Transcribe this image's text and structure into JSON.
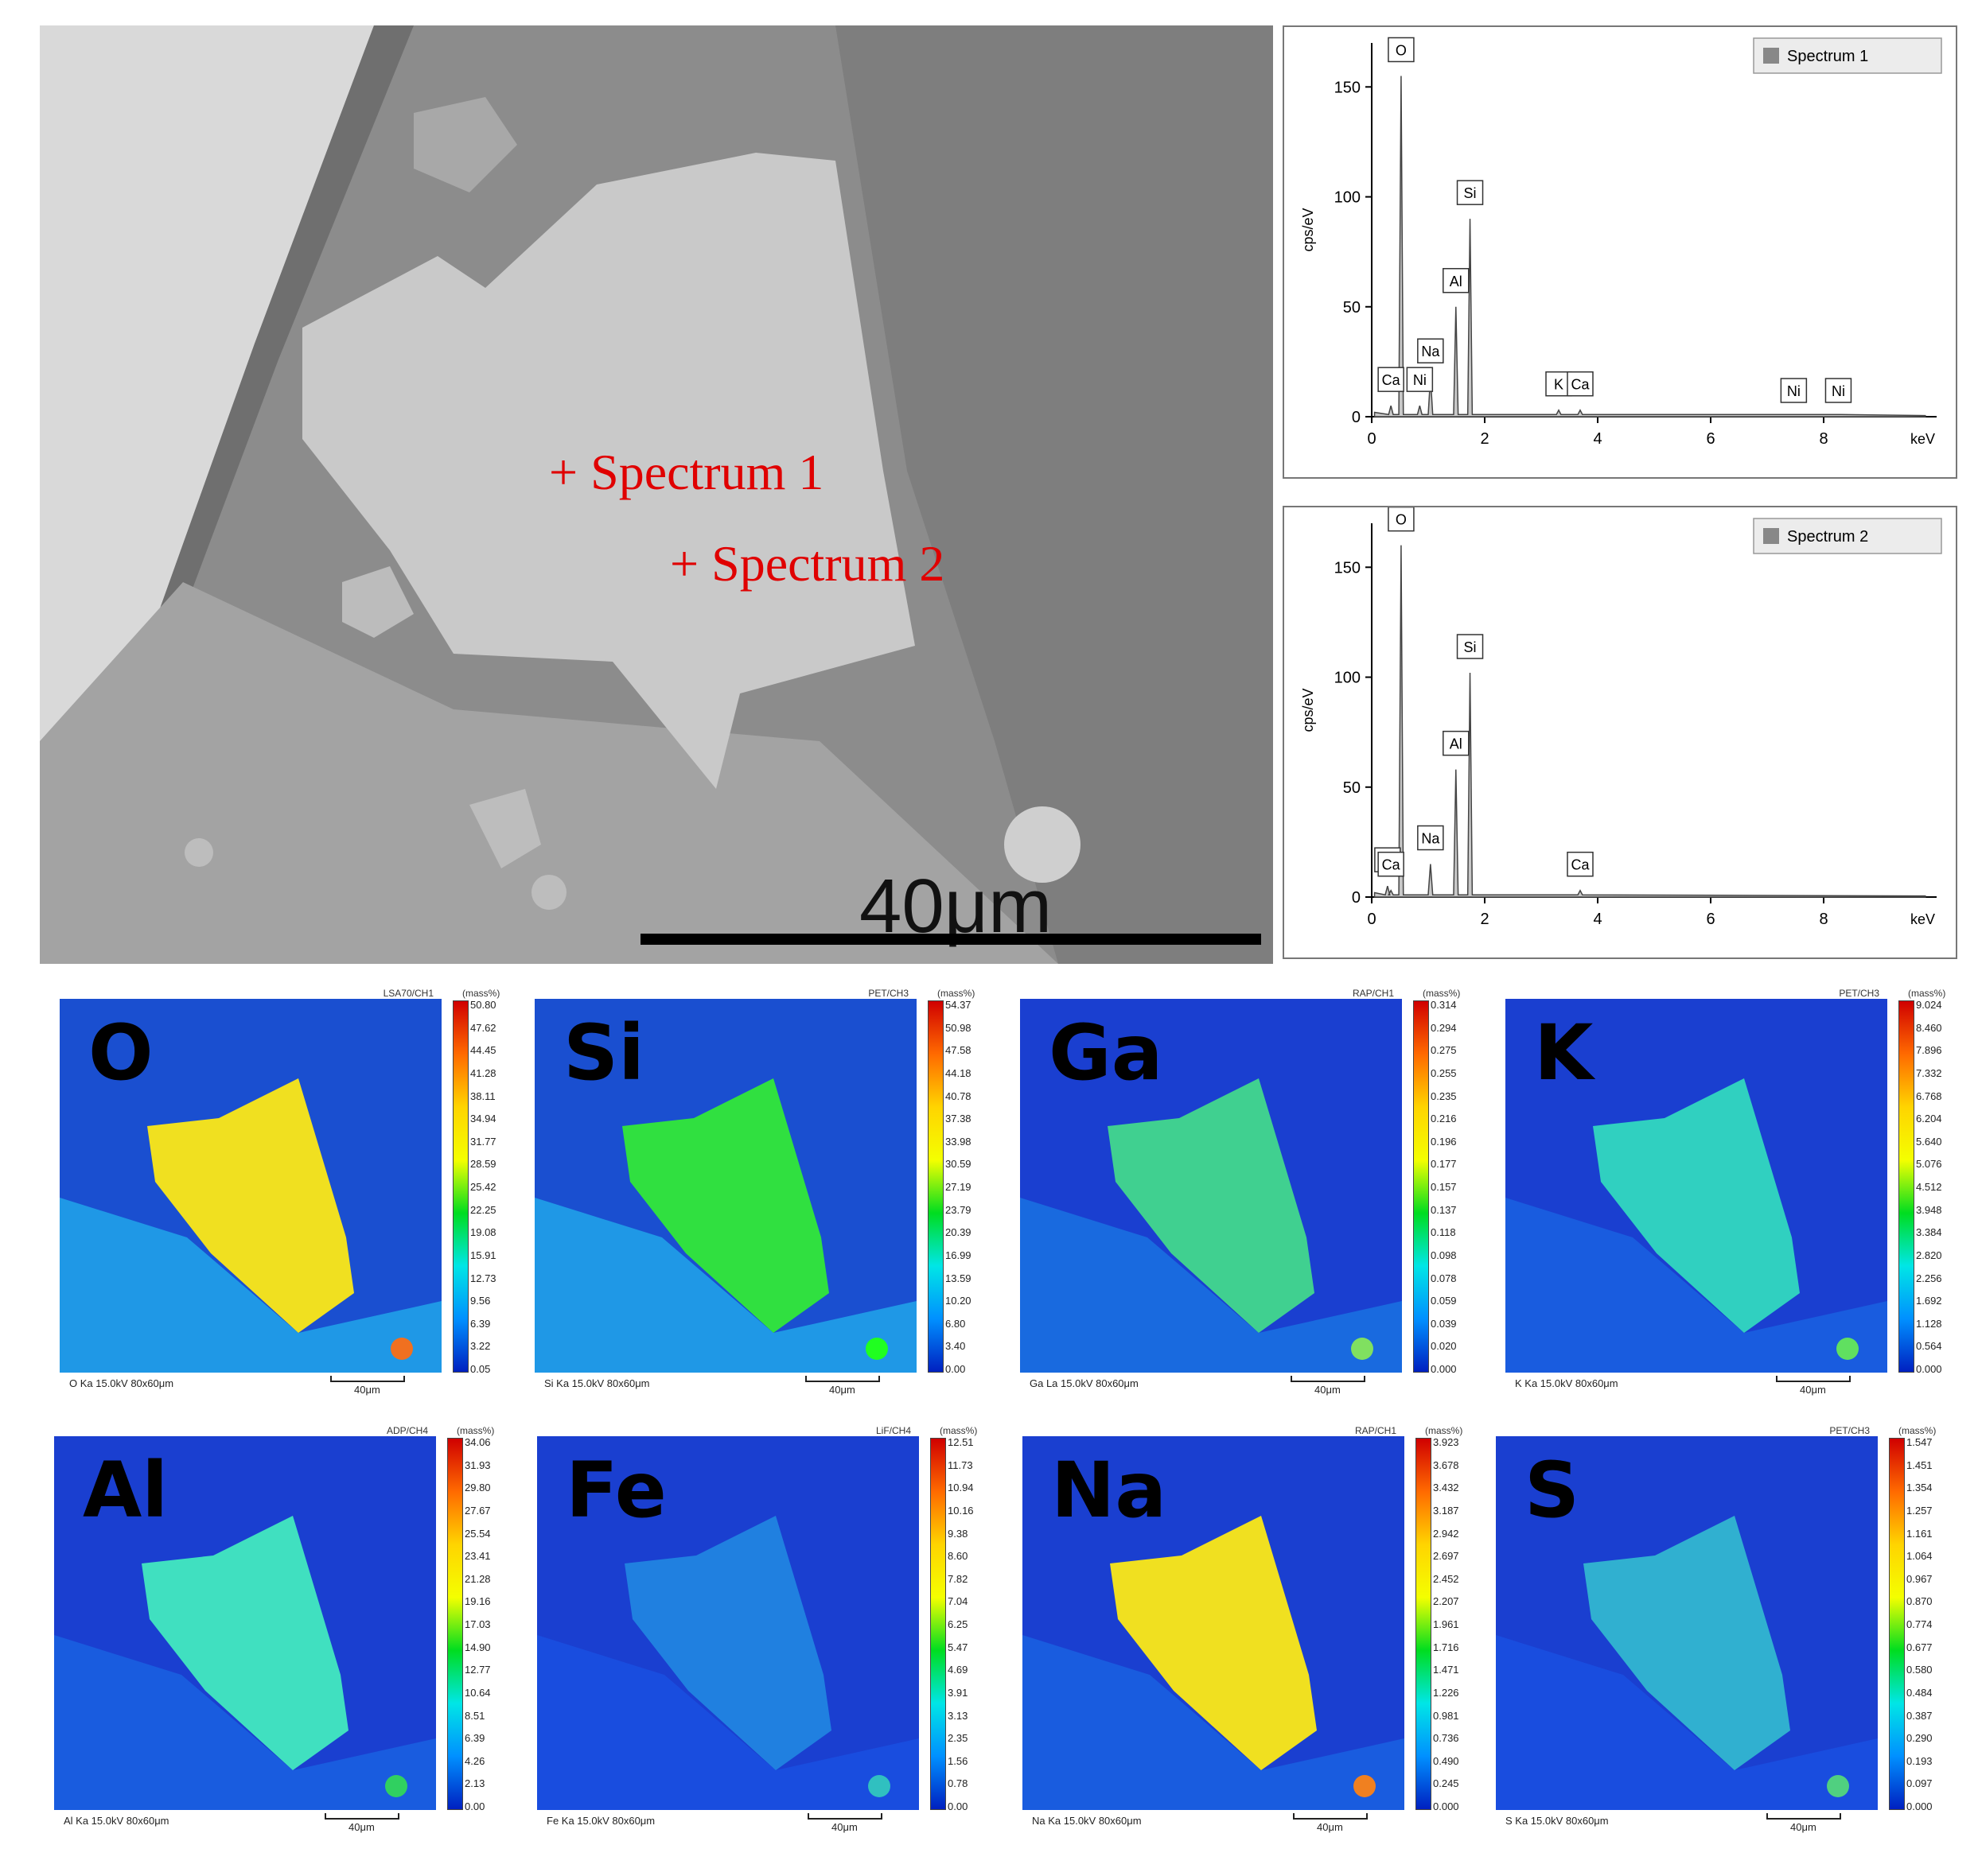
{
  "sem": {
    "spectrum1_label": "+ Spectrum 1",
    "spectrum2_label": "+ Spectrum 2",
    "scale_label": "40μm"
  },
  "spectra": [
    {
      "legend": "Spectrum 1",
      "ylabel": "cps/eV",
      "xlabel": "keV",
      "x_ticks": [
        "0",
        "2",
        "4",
        "6",
        "8"
      ],
      "y_ticks": [
        "0",
        "50",
        "100",
        "150"
      ],
      "peaks": [
        {
          "el": "O",
          "x": 0.52,
          "y": 155
        },
        {
          "el": "Si",
          "x": 1.74,
          "y": 90
        },
        {
          "el": "Al",
          "x": 1.49,
          "y": 50
        },
        {
          "el": "Na",
          "x": 1.04,
          "y": 18
        },
        {
          "el": "Ca",
          "x": 0.34,
          "y": 5
        },
        {
          "el": "Ni",
          "x": 0.85,
          "y": 5
        },
        {
          "el": "K",
          "x": 3.31,
          "y": 3
        },
        {
          "el": "Ca",
          "x": 3.69,
          "y": 3
        },
        {
          "el": "Ni",
          "x": 7.47,
          "y": 0
        },
        {
          "el": "Ni",
          "x": 8.26,
          "y": 0
        }
      ]
    },
    {
      "legend": "Spectrum 2",
      "ylabel": "cps/eV",
      "xlabel": "keV",
      "x_ticks": [
        "0",
        "2",
        "4",
        "6",
        "8"
      ],
      "y_ticks": [
        "0",
        "50",
        "100",
        "150"
      ],
      "peaks": [
        {
          "el": "O",
          "x": 0.52,
          "y": 160
        },
        {
          "el": "Si",
          "x": 1.74,
          "y": 102
        },
        {
          "el": "Al",
          "x": 1.49,
          "y": 58
        },
        {
          "el": "Na",
          "x": 1.04,
          "y": 15
        },
        {
          "el": "C",
          "x": 0.28,
          "y": 5
        },
        {
          "el": "Ca",
          "x": 0.34,
          "y": 3
        },
        {
          "el": "Ca",
          "x": 3.69,
          "y": 3
        }
      ]
    }
  ],
  "maps": [
    {
      "element": "O",
      "header": "LSA70/CH1",
      "unit": "(mass%)",
      "footer": "O Ka 15.0kV 80x60μm",
      "scale": "40μm",
      "ticks": [
        "50.80",
        "47.62",
        "44.45",
        "41.28",
        "38.11",
        "34.94",
        "31.77",
        "28.59",
        "25.42",
        "22.25",
        "19.08",
        "15.91",
        "12.73",
        "9.56",
        "6.39",
        "3.22",
        "0.05"
      ]
    },
    {
      "element": "Si",
      "header": "PET/CH3",
      "unit": "(mass%)",
      "footer": "Si Ka 15.0kV 80x60μm",
      "scale": "40μm",
      "ticks": [
        "54.37",
        "50.98",
        "47.58",
        "44.18",
        "40.78",
        "37.38",
        "33.98",
        "30.59",
        "27.19",
        "23.79",
        "20.39",
        "16.99",
        "13.59",
        "10.20",
        "6.80",
        "3.40",
        "0.00"
      ]
    },
    {
      "element": "Ga",
      "header": "RAP/CH1",
      "unit": "(mass%)",
      "footer": "Ga La 15.0kV 80x60μm",
      "scale": "40μm",
      "ticks": [
        "0.314",
        "0.294",
        "0.275",
        "0.255",
        "0.235",
        "0.216",
        "0.196",
        "0.177",
        "0.157",
        "0.137",
        "0.118",
        "0.098",
        "0.078",
        "0.059",
        "0.039",
        "0.020",
        "0.000"
      ]
    },
    {
      "element": "K",
      "header": "PET/CH3",
      "unit": "(mass%)",
      "footer": "K Ka 15.0kV 80x60μm",
      "scale": "40μm",
      "ticks": [
        "9.024",
        "8.460",
        "7.896",
        "7.332",
        "6.768",
        "6.204",
        "5.640",
        "5.076",
        "4.512",
        "3.948",
        "3.384",
        "2.820",
        "2.256",
        "1.692",
        "1.128",
        "0.564",
        "0.000"
      ]
    },
    {
      "element": "Al",
      "header": "ADP/CH4",
      "unit": "(mass%)",
      "footer": "Al Ka 15.0kV 80x60μm",
      "scale": "40μm",
      "ticks": [
        "34.06",
        "31.93",
        "29.80",
        "27.67",
        "25.54",
        "23.41",
        "21.28",
        "19.16",
        "17.03",
        "14.90",
        "12.77",
        "10.64",
        "8.51",
        "6.39",
        "4.26",
        "2.13",
        "0.00"
      ]
    },
    {
      "element": "Fe",
      "header": "LiF/CH4",
      "unit": "(mass%)",
      "footer": "Fe Ka 15.0kV 80x60μm",
      "scale": "40μm",
      "ticks": [
        "12.51",
        "11.73",
        "10.94",
        "10.16",
        "9.38",
        "8.60",
        "7.82",
        "7.04",
        "6.25",
        "5.47",
        "4.69",
        "3.91",
        "3.13",
        "2.35",
        "1.56",
        "0.78",
        "0.00"
      ]
    },
    {
      "element": "Na",
      "header": "RAP/CH1",
      "unit": "(mass%)",
      "footer": "Na Ka 15.0kV 80x60μm",
      "scale": "40μm",
      "ticks": [
        "3.923",
        "3.678",
        "3.432",
        "3.187",
        "2.942",
        "2.697",
        "2.452",
        "2.207",
        "1.961",
        "1.716",
        "1.471",
        "1.226",
        "0.981",
        "0.736",
        "0.490",
        "0.245",
        "0.000"
      ]
    },
    {
      "element": "S",
      "header": "PET/CH3",
      "unit": "(mass%)",
      "footer": "S Ka 15.0kV 80x60μm",
      "scale": "40μm",
      "ticks": [
        "1.547",
        "1.451",
        "1.354",
        "1.257",
        "1.161",
        "1.064",
        "0.967",
        "0.870",
        "0.774",
        "0.677",
        "0.580",
        "0.484",
        "0.387",
        "0.290",
        "0.193",
        "0.097",
        "0.000"
      ]
    }
  ]
}
